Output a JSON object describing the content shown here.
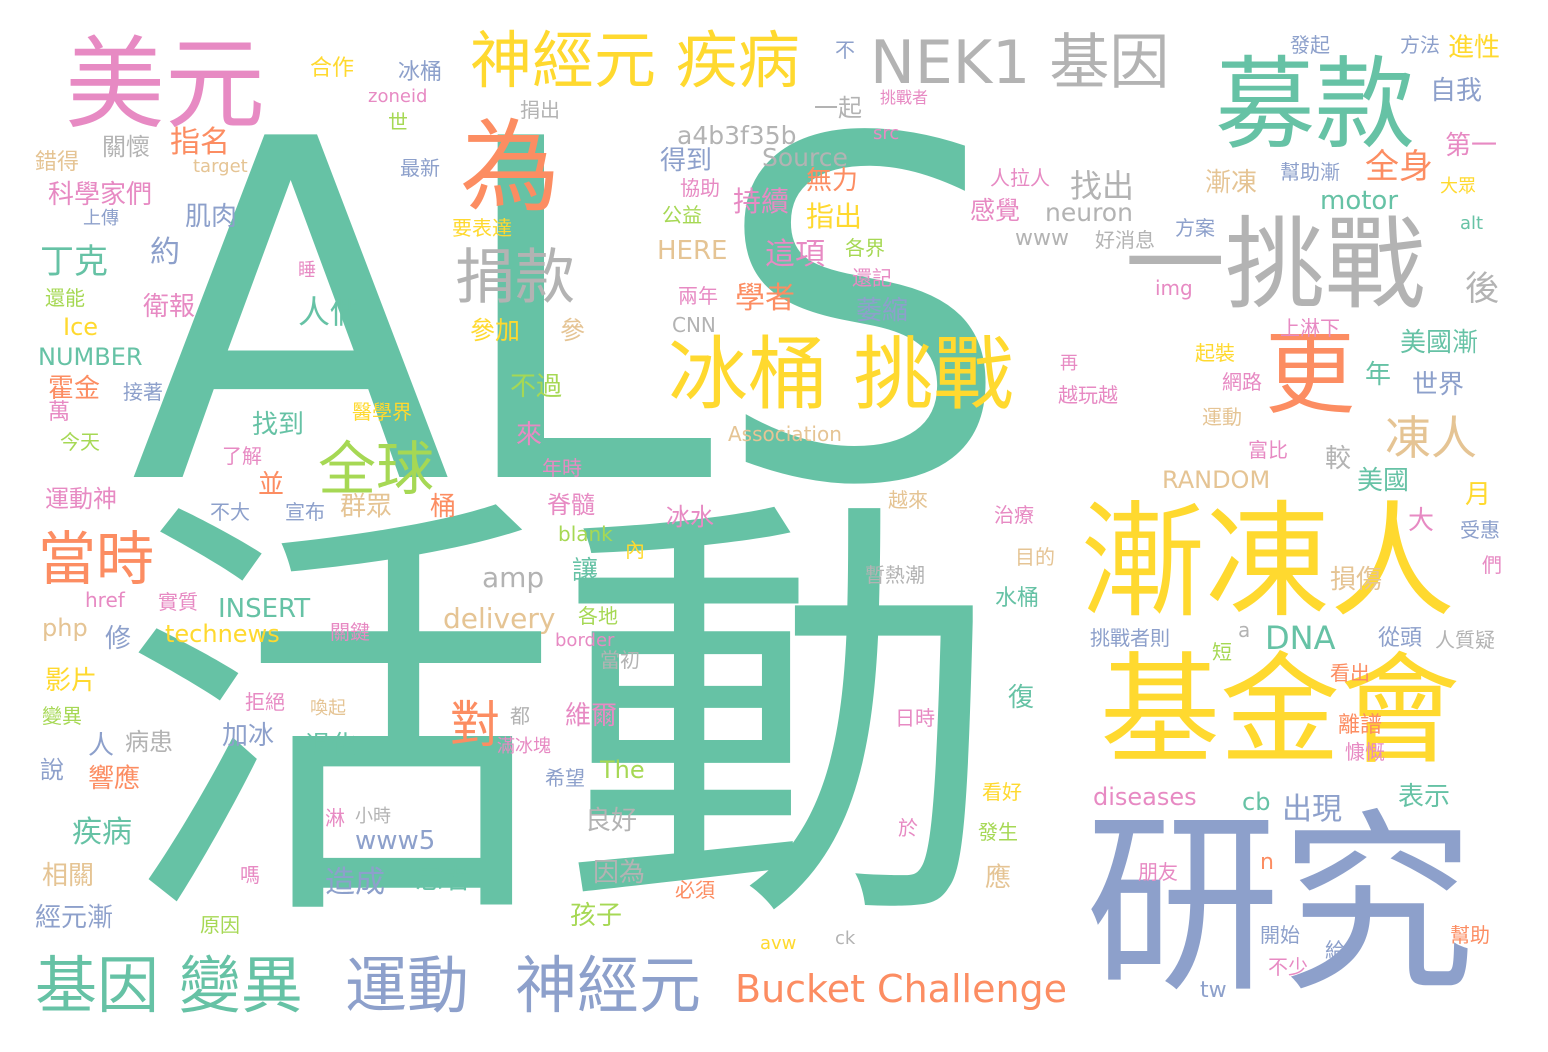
{
  "palette": {
    "green": "#66c2a5",
    "orange": "#fc8d62",
    "blue": "#8da0cb",
    "pink": "#e78ac3",
    "lime": "#a6d854",
    "yellow": "#ffd92f",
    "tan": "#e5c494",
    "gray": "#b3b3b3"
  },
  "words": [
    {
      "text": "ALS",
      "color": "green"
    },
    {
      "text": "活動",
      "color": "green"
    },
    {
      "text": "美元",
      "color": "pink"
    },
    {
      "text": "神經元 疾病",
      "color": "yellow"
    },
    {
      "text": "NEK1 基因",
      "color": "gray"
    },
    {
      "text": "募款",
      "color": "green"
    },
    {
      "text": "為",
      "color": "orange"
    },
    {
      "text": "一挑戰",
      "color": "gray"
    },
    {
      "text": "更",
      "color": "orange"
    },
    {
      "text": "漸凍人",
      "color": "yellow"
    },
    {
      "text": "基金會",
      "color": "yellow"
    },
    {
      "text": "研究",
      "color": "blue"
    },
    {
      "text": "冰桶 挑戰",
      "color": "yellow"
    },
    {
      "text": "捐款",
      "color": "gray"
    },
    {
      "text": "全球",
      "color": "lime"
    },
    {
      "text": "當時",
      "color": "orange"
    },
    {
      "text": "基因 變異",
      "color": "green"
    },
    {
      "text": "運動",
      "color": "blue"
    },
    {
      "text": "神經元",
      "color": "blue"
    },
    {
      "text": "Bucket Challenge",
      "color": "orange"
    },
    {
      "text": "凍人",
      "color": "tan"
    },
    {
      "text": "對",
      "color": "orange"
    },
    {
      "text": "合作",
      "color": "yellow"
    },
    {
      "text": "冰桶",
      "color": "blue"
    },
    {
      "text": "zoneid",
      "color": "pink"
    },
    {
      "text": "捐出",
      "color": "gray"
    },
    {
      "text": "一起",
      "color": "gray"
    },
    {
      "text": "不",
      "color": "blue"
    },
    {
      "text": "挑戰者",
      "color": "pink"
    },
    {
      "text": "發起",
      "color": "blue"
    },
    {
      "text": "方法",
      "color": "blue"
    },
    {
      "text": "進性",
      "color": "yellow"
    },
    {
      "text": "自我",
      "color": "blue"
    },
    {
      "text": "第一",
      "color": "pink"
    },
    {
      "text": "大眾",
      "color": "yellow"
    },
    {
      "text": "a4b3f35b",
      "color": "gray"
    },
    {
      "text": "Source",
      "color": "gray"
    },
    {
      "text": "世",
      "color": "lime"
    },
    {
      "text": "src",
      "color": "pink"
    },
    {
      "text": "錯得",
      "color": "tan"
    },
    {
      "text": "關懷",
      "color": "gray"
    },
    {
      "text": "指名",
      "color": "orange"
    },
    {
      "text": "target",
      "color": "tan"
    },
    {
      "text": "最新",
      "color": "blue"
    },
    {
      "text": "得到",
      "color": "blue"
    },
    {
      "text": "協助",
      "color": "pink"
    },
    {
      "text": "無力",
      "color": "orange"
    },
    {
      "text": "找出",
      "color": "gray"
    },
    {
      "text": "漸凍",
      "color": "tan"
    },
    {
      "text": "全身",
      "color": "orange"
    },
    {
      "text": "幫助漸",
      "color": "blue"
    },
    {
      "text": "人拉人",
      "color": "pink"
    },
    {
      "text": "感覺",
      "color": "pink"
    },
    {
      "text": "neuron",
      "color": "gray"
    },
    {
      "text": "motor",
      "color": "green"
    },
    {
      "text": "科學家們",
      "color": "pink"
    },
    {
      "text": "上傳",
      "color": "blue"
    },
    {
      "text": "肌肉",
      "color": "blue"
    },
    {
      "text": "公益",
      "color": "lime"
    },
    {
      "text": "持續",
      "color": "pink"
    },
    {
      "text": "指出",
      "color": "yellow"
    },
    {
      "text": "要表達",
      "color": "yellow"
    },
    {
      "text": "方案",
      "color": "blue"
    },
    {
      "text": "alt",
      "color": "green"
    },
    {
      "text": "丁克",
      "color": "green"
    },
    {
      "text": "約",
      "color": "blue"
    },
    {
      "text": "HERE",
      "color": "tan"
    },
    {
      "text": "這項",
      "color": "pink"
    },
    {
      "text": "各界",
      "color": "lime"
    },
    {
      "text": "www",
      "color": "gray"
    },
    {
      "text": "好消息",
      "color": "gray"
    },
    {
      "text": "還能",
      "color": "lime"
    },
    {
      "text": "衛報",
      "color": "pink"
    },
    {
      "text": "兩年",
      "color": "pink"
    },
    {
      "text": "學者",
      "color": "orange"
    },
    {
      "text": "還記",
      "color": "pink"
    },
    {
      "text": "img",
      "color": "pink"
    },
    {
      "text": "後",
      "color": "gray"
    },
    {
      "text": "人們",
      "color": "green"
    },
    {
      "text": "萎縮",
      "color": "blue"
    },
    {
      "text": "上淋下",
      "color": "pink"
    },
    {
      "text": "Ice",
      "color": "yellow"
    },
    {
      "text": "參加",
      "color": "yellow"
    },
    {
      "text": "參",
      "color": "tan"
    },
    {
      "text": "CNN",
      "color": "gray"
    },
    {
      "text": "美國漸",
      "color": "green"
    },
    {
      "text": "NUMBER",
      "color": "green"
    },
    {
      "text": "起裝",
      "color": "yellow"
    },
    {
      "text": "霍金",
      "color": "orange"
    },
    {
      "text": "接著",
      "color": "blue"
    },
    {
      "text": "不過",
      "color": "lime"
    },
    {
      "text": "網路",
      "color": "pink"
    },
    {
      "text": "年",
      "color": "green"
    },
    {
      "text": "世界",
      "color": "blue"
    },
    {
      "text": "萬",
      "color": "pink"
    },
    {
      "text": "醫學界",
      "color": "yellow"
    },
    {
      "text": "越玩越",
      "color": "pink"
    },
    {
      "text": "找到",
      "color": "green"
    },
    {
      "text": "運動",
      "color": "tan"
    },
    {
      "text": "今天",
      "color": "lime"
    },
    {
      "text": "了解",
      "color": "pink"
    },
    {
      "text": "來",
      "color": "pink"
    },
    {
      "text": "Association",
      "color": "tan"
    },
    {
      "text": "富比",
      "color": "pink"
    },
    {
      "text": "並",
      "color": "orange"
    },
    {
      "text": "年時",
      "color": "pink"
    },
    {
      "text": "RANDOM",
      "color": "tan"
    },
    {
      "text": "較",
      "color": "gray"
    },
    {
      "text": "美國",
      "color": "green"
    },
    {
      "text": "運動神",
      "color": "pink"
    },
    {
      "text": "不大",
      "color": "blue"
    },
    {
      "text": "宣布",
      "color": "blue"
    },
    {
      "text": "群眾",
      "color": "tan"
    },
    {
      "text": "桶",
      "color": "orange"
    },
    {
      "text": "脊髓",
      "color": "pink"
    },
    {
      "text": "越來",
      "color": "tan"
    },
    {
      "text": "月",
      "color": "yellow"
    },
    {
      "text": "冰水",
      "color": "pink"
    },
    {
      "text": "治療",
      "color": "pink"
    },
    {
      "text": "大",
      "color": "pink"
    },
    {
      "text": "受惠",
      "color": "blue"
    },
    {
      "text": "blank",
      "color": "lime"
    },
    {
      "text": "內",
      "color": "yellow"
    },
    {
      "text": "目的",
      "color": "tan"
    },
    {
      "text": "讓",
      "color": "green"
    },
    {
      "text": "amp",
      "color": "gray"
    },
    {
      "text": "暫熱潮",
      "color": "gray"
    },
    {
      "text": "損傷",
      "color": "tan"
    },
    {
      "text": "們",
      "color": "pink"
    },
    {
      "text": "href",
      "color": "pink"
    },
    {
      "text": "實質",
      "color": "pink"
    },
    {
      "text": "INSERT",
      "color": "green"
    },
    {
      "text": "delivery",
      "color": "tan"
    },
    {
      "text": "水桶",
      "color": "green"
    },
    {
      "text": "php",
      "color": "tan"
    },
    {
      "text": "technews",
      "color": "yellow"
    },
    {
      "text": "關鍵",
      "color": "pink"
    },
    {
      "text": "各地",
      "color": "lime"
    },
    {
      "text": "border",
      "color": "pink"
    },
    {
      "text": "DNA",
      "color": "green"
    },
    {
      "text": "a",
      "color": "gray"
    },
    {
      "text": "從頭",
      "color": "blue"
    },
    {
      "text": "人質疑",
      "color": "gray"
    },
    {
      "text": "修",
      "color": "blue"
    },
    {
      "text": "挑戰者則",
      "color": "blue"
    },
    {
      "text": "短",
      "color": "lime"
    },
    {
      "text": "當初",
      "color": "gray"
    },
    {
      "text": "影片",
      "color": "yellow"
    },
    {
      "text": "看出",
      "color": "orange"
    },
    {
      "text": "拒絕",
      "color": "pink"
    },
    {
      "text": "喚起",
      "color": "tan"
    },
    {
      "text": "都",
      "color": "gray"
    },
    {
      "text": "維爾",
      "color": "pink"
    },
    {
      "text": "變異",
      "color": "lime"
    },
    {
      "text": "復",
      "color": "green"
    },
    {
      "text": "日時",
      "color": "pink"
    },
    {
      "text": "離譜",
      "color": "orange"
    },
    {
      "text": "人",
      "color": "blue"
    },
    {
      "text": "病患",
      "color": "gray"
    },
    {
      "text": "加冰",
      "color": "blue"
    },
    {
      "text": "退化",
      "color": "green"
    },
    {
      "text": "滿冰塊",
      "color": "pink"
    },
    {
      "text": "慷慨",
      "color": "pink"
    },
    {
      "text": "說",
      "color": "blue"
    },
    {
      "text": "響應",
      "color": "orange"
    },
    {
      "text": "希望",
      "color": "blue"
    },
    {
      "text": "The",
      "color": "lime"
    },
    {
      "text": "表示",
      "color": "green"
    },
    {
      "text": "diseases",
      "color": "pink"
    },
    {
      "text": "cb",
      "color": "green"
    },
    {
      "text": "出現",
      "color": "blue"
    },
    {
      "text": "看好",
      "color": "yellow"
    },
    {
      "text": "淋",
      "color": "pink"
    },
    {
      "text": "小時",
      "color": "gray"
    },
    {
      "text": "疾病",
      "color": "green"
    },
    {
      "text": "www5",
      "color": "blue"
    },
    {
      "text": "良好",
      "color": "gray"
    },
    {
      "text": "於",
      "color": "pink"
    },
    {
      "text": "發生",
      "color": "lime"
    },
    {
      "text": "n",
      "color": "orange"
    },
    {
      "text": "相關",
      "color": "tan"
    },
    {
      "text": "嗎",
      "color": "pink"
    },
    {
      "text": "造成",
      "color": "blue"
    },
    {
      "text": "患者",
      "color": "green"
    },
    {
      "text": "因為",
      "color": "gray"
    },
    {
      "text": "必須",
      "color": "orange"
    },
    {
      "text": "應",
      "color": "tan"
    },
    {
      "text": "朋友",
      "color": "pink"
    },
    {
      "text": "經元漸",
      "color": "blue"
    },
    {
      "text": "原因",
      "color": "lime"
    },
    {
      "text": "孩子",
      "color": "lime"
    },
    {
      "text": "開始",
      "color": "blue"
    },
    {
      "text": "幫助",
      "color": "orange"
    },
    {
      "text": "avw",
      "color": "yellow"
    },
    {
      "text": "ck",
      "color": "gray"
    },
    {
      "text": "給",
      "color": "blue"
    },
    {
      "text": "不少",
      "color": "pink"
    },
    {
      "text": "tw",
      "color": "blue"
    },
    {
      "text": "睡",
      "color": "pink"
    },
    {
      "text": "再",
      "color": "pink"
    }
  ]
}
